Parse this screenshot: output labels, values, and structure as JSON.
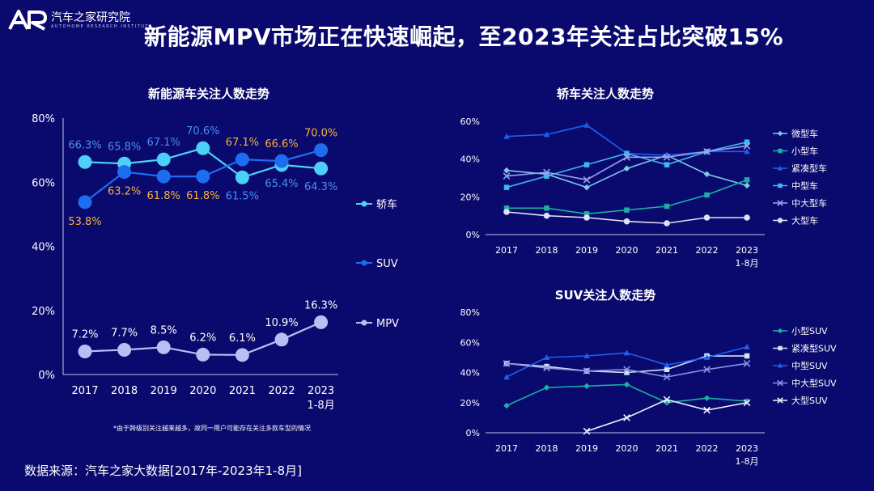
{
  "header": {
    "logo_cn": "汽车之家研究院",
    "logo_en": "AUTOHOME RESEARCH INSTITUTE",
    "logo_mark": "AR",
    "title": "新能源MPV市场正在快速崛起，至2023年关注占比突破15%"
  },
  "footer": {
    "source": "数据来源：汽车之家大数据[2017年-2023年1-8月]",
    "note": "*由于跨级别关注越来越多，故同一用户可能存在关注多款车型的情况"
  },
  "colors": {
    "background": "#0a0a6e",
    "sedan": "#4dd0f7",
    "suv": "#1e6cf0",
    "mpv": "#b8bff5",
    "label_orange": "#f5b335",
    "label_blue": "#4a8df0",
    "grid": "#c0c4e4"
  },
  "chart_data": [
    {
      "id": "main",
      "type": "line",
      "title": "新能源车关注人数走势",
      "categories": [
        "2017",
        "2018",
        "2019",
        "2020",
        "2021",
        "2022",
        "2023\n1-8月"
      ],
      "ylim": [
        0,
        80
      ],
      "yticks": [
        "0%",
        "20%",
        "40%",
        "60%",
        "80%"
      ],
      "series": [
        {
          "name": "轿车",
          "values": [
            66.3,
            65.8,
            67.1,
            70.6,
            61.5,
            65.4,
            64.3
          ],
          "labels": [
            "66.3%",
            "65.8%",
            "67.1%",
            "70.6%",
            "61.5%",
            "65.4%",
            "64.3%"
          ]
        },
        {
          "name": "SUV",
          "values": [
            53.8,
            63.2,
            61.8,
            61.8,
            67.1,
            66.6,
            70.0
          ],
          "labels": [
            "53.8%",
            "63.2%",
            "61.8%",
            "61.8%",
            "67.1%",
            "66.6%",
            "70.0%"
          ]
        },
        {
          "name": "MPV",
          "values": [
            7.2,
            7.7,
            8.5,
            6.2,
            6.1,
            10.9,
            16.3
          ],
          "labels": [
            "7.2%",
            "7.7%",
            "8.5%",
            "6.2%",
            "6.1%",
            "10.9%",
            "16.3%"
          ]
        }
      ]
    },
    {
      "id": "sedan",
      "type": "line",
      "title": "轿车关注人数走势",
      "categories": [
        "2017",
        "2018",
        "2019",
        "2020",
        "2021",
        "2022",
        "2023\n1-8月"
      ],
      "ylim": [
        0,
        60
      ],
      "yticks": [
        "0%",
        "20%",
        "40%",
        "60%"
      ],
      "series": [
        {
          "name": "微型车",
          "marker": "diamond",
          "color": "#7fc8e6",
          "values": [
            34,
            32,
            25,
            35,
            42,
            32,
            26
          ]
        },
        {
          "name": "小型车",
          "marker": "square",
          "color": "#1ab0a6",
          "values": [
            14,
            14,
            11,
            13,
            15,
            21,
            29
          ]
        },
        {
          "name": "紧凑型车",
          "marker": "triangle",
          "color": "#1e5ff0",
          "values": [
            52,
            53,
            58,
            43,
            42,
            44,
            44
          ]
        },
        {
          "name": "中型车",
          "marker": "square",
          "color": "#3fb8f2",
          "values": [
            25,
            31,
            37,
            43,
            37,
            44,
            49
          ]
        },
        {
          "name": "中大型车",
          "marker": "x",
          "color": "#9aa4ee",
          "values": [
            31,
            33,
            29,
            41,
            41,
            44,
            47
          ]
        },
        {
          "name": "大型车",
          "marker": "circle",
          "color": "#dfe1f8",
          "values": [
            12,
            10,
            9,
            7,
            6,
            9,
            9
          ]
        }
      ]
    },
    {
      "id": "suv",
      "type": "line",
      "title": "SUV关注人数走势",
      "categories": [
        "2017",
        "2018",
        "2019",
        "2020",
        "2021",
        "2022",
        "2023\n1-8月"
      ],
      "ylim": [
        0,
        80
      ],
      "yticks": [
        "0%",
        "20%",
        "40%",
        "60%",
        "80%"
      ],
      "series": [
        {
          "name": "小型SUV",
          "marker": "diamond",
          "color": "#1ab0a6",
          "values": [
            18,
            30,
            31,
            32,
            20,
            23,
            21
          ]
        },
        {
          "name": "紧凑型SUV",
          "marker": "square",
          "color": "#cfe6f7",
          "values": [
            46,
            44,
            41,
            40,
            42,
            51,
            51
          ]
        },
        {
          "name": "中型SUV",
          "marker": "triangle",
          "color": "#1e5ff0",
          "values": [
            37,
            50,
            51,
            53,
            45,
            50,
            57
          ]
        },
        {
          "name": "中大型SUV",
          "marker": "x",
          "color": "#8a92e6",
          "values": [
            46,
            43,
            41,
            42,
            37,
            42,
            46
          ]
        },
        {
          "name": "大型SUV",
          "marker": "x",
          "color": "#eef0fb",
          "values": [
            null,
            null,
            1,
            10,
            22,
            15,
            20
          ]
        }
      ]
    }
  ]
}
